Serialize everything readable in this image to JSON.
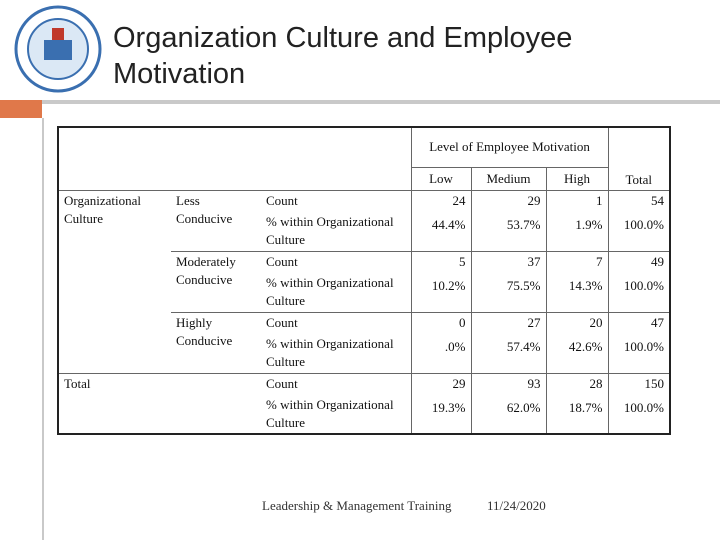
{
  "header": {
    "title": "Organization Culture and Employee Motivation"
  },
  "table": {
    "group_header": "Level of Employee Motivation",
    "columns": [
      "Low",
      "Medium",
      "High"
    ],
    "total_column": "Total",
    "row_header": "Organizational Culture",
    "groups": [
      {
        "label": "Less Conducive",
        "rows": [
          {
            "stat": "Count",
            "values": [
              "24",
              "29",
              "1",
              "54"
            ]
          },
          {
            "stat": "% within Organizational Culture",
            "values": [
              "44.4%",
              "53.7%",
              "1.9%",
              "100.0%"
            ]
          }
        ]
      },
      {
        "label": "Moderately Conducive",
        "rows": [
          {
            "stat": "Count",
            "values": [
              "5",
              "37",
              "7",
              "49"
            ]
          },
          {
            "stat": "% within Organizational Culture",
            "values": [
              "10.2%",
              "75.5%",
              "14.3%",
              "100.0%"
            ]
          }
        ]
      },
      {
        "label": "Highly Conducive",
        "rows": [
          {
            "stat": "Count",
            "values": [
              "0",
              "27",
              "20",
              "47"
            ]
          },
          {
            "stat": "% within Organizational Culture",
            "values": [
              ".0%",
              "57.4%",
              "42.6%",
              "100.0%"
            ]
          }
        ]
      }
    ],
    "total": {
      "label": "Total",
      "rows": [
        {
          "stat": "Count",
          "values": [
            "29",
            "93",
            "28",
            "150"
          ]
        },
        {
          "stat": "% within Organizational Culture",
          "values": [
            "19.3%",
            "62.0%",
            "18.7%",
            "100.0%"
          ]
        }
      ]
    }
  },
  "footer": {
    "text": "Leadership & Management Training",
    "date": "11/24/2020"
  }
}
